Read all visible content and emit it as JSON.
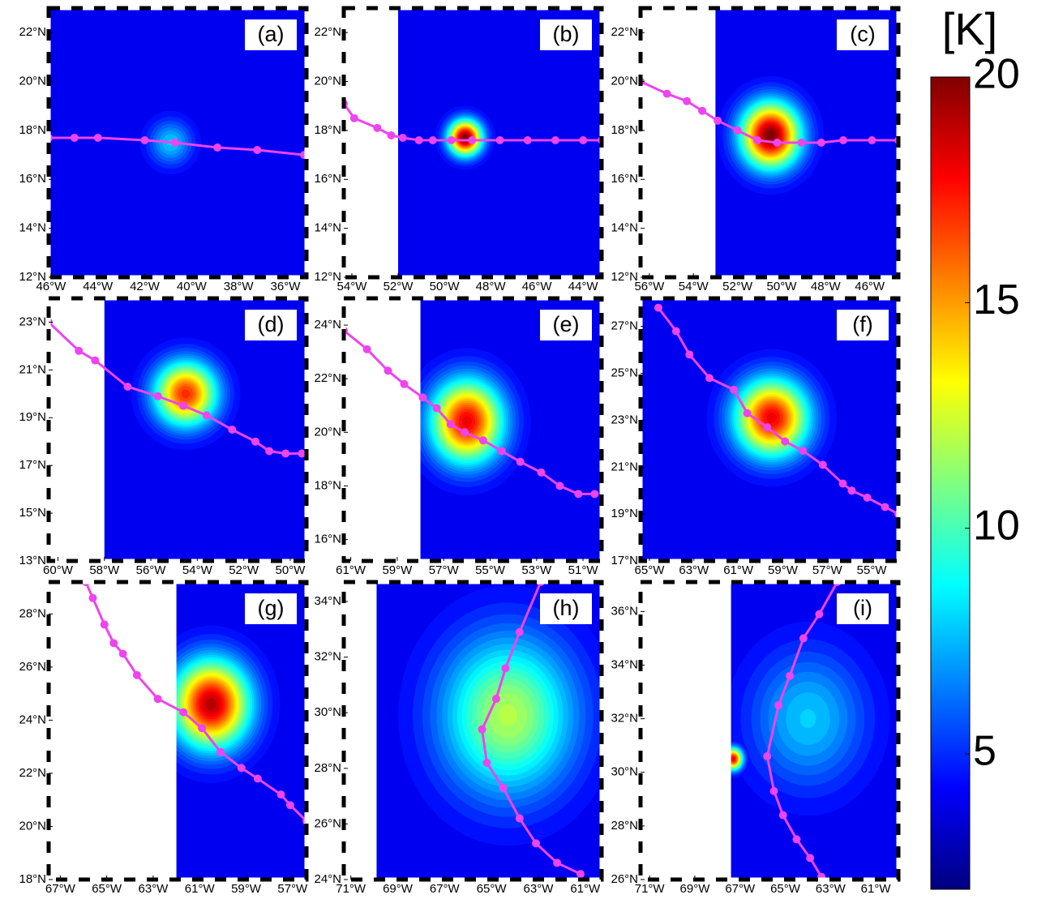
{
  "chart_data": {
    "type": "heatmap",
    "colormap": "jet",
    "track_color": "#ee44ee",
    "colorbar": {
      "label": "[K]",
      "clim": [
        2,
        20
      ],
      "ticks": [
        5,
        10,
        15,
        20
      ]
    },
    "panels": [
      {
        "label": "(a)",
        "xlim": [
          -46.1,
          -35.1
        ],
        "ylim": [
          12,
          23
        ],
        "background": 4,
        "xticks": [
          {
            "value": -46,
            "label": "46°W"
          },
          {
            "value": -44,
            "label": "44°W"
          },
          {
            "value": -42,
            "label": "42°W"
          },
          {
            "value": -40,
            "label": "40°W"
          },
          {
            "value": -38,
            "label": "38°W"
          },
          {
            "value": -36,
            "label": "36°W"
          }
        ],
        "yticks": [
          {
            "value": 12,
            "label": "12°N"
          },
          {
            "value": 14,
            "label": "14°N"
          },
          {
            "value": 16,
            "label": "16°N"
          },
          {
            "value": 18,
            "label": "18°N"
          },
          {
            "value": 20,
            "label": "20°N"
          },
          {
            "value": 22,
            "label": "22°N"
          }
        ],
        "cores": [
          {
            "lon": -40.9,
            "lat": 17.5,
            "peak": 8,
            "radius": 0.9
          }
        ],
        "track": {
          "lon": [
            -46.1,
            -45.0,
            -44.0,
            -42.0,
            -40.7,
            -38.9,
            -37.2,
            -35.2
          ],
          "lat": [
            17.7,
            17.7,
            17.7,
            17.6,
            17.5,
            17.3,
            17.2,
            17.0
          ]
        }
      },
      {
        "label": "(b)",
        "xlim": [
          -54.35,
          -43.2
        ],
        "ylim": [
          12,
          23
        ],
        "background": 4,
        "no_data_west": -52,
        "xticks": [
          {
            "value": -54,
            "label": "54°W"
          },
          {
            "value": -52,
            "label": "52°W"
          },
          {
            "value": -50,
            "label": "50°W"
          },
          {
            "value": -48,
            "label": "48°W"
          },
          {
            "value": -46,
            "label": "46°W"
          },
          {
            "value": -44,
            "label": "44°W"
          }
        ],
        "yticks": [
          {
            "value": 12,
            "label": "12°N"
          },
          {
            "value": 14,
            "label": "14°N"
          },
          {
            "value": 16,
            "label": "16°N"
          },
          {
            "value": 18,
            "label": "18°N"
          },
          {
            "value": 20,
            "label": "20°N"
          },
          {
            "value": 22,
            "label": "22°N"
          }
        ],
        "cores": [
          {
            "lon": -49.1,
            "lat": 17.7,
            "peak": 20,
            "radius": 0.7
          }
        ],
        "track": {
          "lon": [
            -54.35,
            -53.9,
            -52.9,
            -52.3,
            -51.8,
            -51.1,
            -50.5,
            -49.7,
            -48.8,
            -47.6,
            -46.4,
            -45.2,
            -44.0,
            -43.2
          ],
          "lat": [
            19.1,
            18.5,
            18.1,
            17.8,
            17.7,
            17.6,
            17.6,
            17.6,
            17.6,
            17.6,
            17.6,
            17.6,
            17.6,
            17.6
          ]
        }
      },
      {
        "label": "(c)",
        "xlim": [
          -56.4,
          -44.7
        ],
        "ylim": [
          12,
          23
        ],
        "background": 4,
        "no_data_west": -53,
        "xticks": [
          {
            "value": -56,
            "label": "56°W"
          },
          {
            "value": -54,
            "label": "54°W"
          },
          {
            "value": -52,
            "label": "52°W"
          },
          {
            "value": -50,
            "label": "50°W"
          },
          {
            "value": -48,
            "label": "48°W"
          },
          {
            "value": -46,
            "label": "46°W"
          }
        ],
        "yticks": [
          {
            "value": 12,
            "label": "12°N"
          },
          {
            "value": 14,
            "label": "14°N"
          },
          {
            "value": 16,
            "label": "16°N"
          },
          {
            "value": 18,
            "label": "18°N"
          },
          {
            "value": 20,
            "label": "20°N"
          },
          {
            "value": 22,
            "label": "22°N"
          }
        ],
        "cores": [
          {
            "lon": -50.5,
            "lat": 17.8,
            "peak": 20,
            "radius": 1.3
          }
        ],
        "track": {
          "lon": [
            -56.4,
            -55.2,
            -54.3,
            -53.6,
            -52.9,
            -52.0,
            -51.1,
            -50.2,
            -49.1,
            -48.2,
            -47.2,
            -45.9,
            -44.7
          ],
          "lat": [
            20.0,
            19.5,
            19.2,
            18.8,
            18.4,
            18.0,
            17.6,
            17.5,
            17.5,
            17.5,
            17.6,
            17.6,
            17.6
          ]
        }
      },
      {
        "label": "(d)",
        "xlim": [
          -60.4,
          -49.3
        ],
        "ylim": [
          13,
          24
        ],
        "background": 4,
        "no_data_west": -58,
        "xticks": [
          {
            "value": -60,
            "label": "60°W"
          },
          {
            "value": -58,
            "label": "58°W"
          },
          {
            "value": -56,
            "label": "56°W"
          },
          {
            "value": -54,
            "label": "54°W"
          },
          {
            "value": -52,
            "label": "52°W"
          },
          {
            "value": -50,
            "label": "50°W"
          }
        ],
        "yticks": [
          {
            "value": 13,
            "label": "13°N"
          },
          {
            "value": 15,
            "label": "15°N"
          },
          {
            "value": 17,
            "label": "17°N"
          },
          {
            "value": 19,
            "label": "19°N"
          },
          {
            "value": 21,
            "label": "21°N"
          },
          {
            "value": 23,
            "label": "23°N"
          }
        ],
        "cores": [
          {
            "lon": -54.5,
            "lat": 20.0,
            "peak": 17,
            "radius": 1.3
          }
        ],
        "track": {
          "lon": [
            -60.4,
            -59.1,
            -58.4,
            -57.0,
            -55.7,
            -54.6,
            -53.6,
            -52.5,
            -51.5,
            -50.9,
            -50.2,
            -49.5
          ],
          "lat": [
            23.0,
            21.8,
            21.4,
            20.3,
            19.9,
            19.5,
            19.1,
            18.5,
            18.0,
            17.6,
            17.5,
            17.5
          ]
        }
      },
      {
        "label": "(e)",
        "xlim": [
          -61.3,
          -50.2
        ],
        "ylim": [
          15.2,
          25
        ],
        "background": 4,
        "no_data_west": -58,
        "xticks": [
          {
            "value": -61,
            "label": "61°W"
          },
          {
            "value": -59,
            "label": "59°W"
          },
          {
            "value": -57,
            "label": "57°W"
          },
          {
            "value": -55,
            "label": "55°W"
          },
          {
            "value": -53,
            "label": "53°W"
          },
          {
            "value": -51,
            "label": "51°W"
          }
        ],
        "yticks": [
          {
            "value": 16,
            "label": "16°N"
          },
          {
            "value": 18,
            "label": "18°N"
          },
          {
            "value": 20,
            "label": "20°N"
          },
          {
            "value": 22,
            "label": "22°N"
          },
          {
            "value": 24,
            "label": "24°N"
          }
        ],
        "cores": [
          {
            "lon": -56.0,
            "lat": 20.4,
            "peak": 18,
            "radius": 1.5
          }
        ],
        "track": {
          "lon": [
            -61.3,
            -60.3,
            -59.4,
            -58.7,
            -57.9,
            -57.3,
            -56.7,
            -56.1,
            -55.3,
            -54.5,
            -53.7,
            -52.8,
            -52.0,
            -51.2,
            -50.5
          ],
          "lat": [
            23.8,
            23.1,
            22.3,
            21.8,
            21.3,
            20.9,
            20.3,
            20.0,
            19.7,
            19.3,
            18.9,
            18.5,
            18.0,
            17.7,
            17.7
          ]
        }
      },
      {
        "label": "(f)",
        "xlim": [
          -65.4,
          -53.8
        ],
        "ylim": [
          17,
          28.2
        ],
        "background": 4,
        "xticks": [
          {
            "value": -65,
            "label": "65°W"
          },
          {
            "value": -63,
            "label": "63°W"
          },
          {
            "value": -61,
            "label": "61°W"
          },
          {
            "value": -59,
            "label": "59°W"
          },
          {
            "value": -57,
            "label": "57°W"
          },
          {
            "value": -55,
            "label": "55°W"
          }
        ],
        "yticks": [
          {
            "value": 17,
            "label": "17°N"
          },
          {
            "value": 19,
            "label": "19°N"
          },
          {
            "value": 21,
            "label": "21°N"
          },
          {
            "value": 23,
            "label": "23°N"
          },
          {
            "value": 25,
            "label": "25°N"
          },
          {
            "value": 27,
            "label": "27°N"
          }
        ],
        "cores": [
          {
            "lon": -59.5,
            "lat": 23.1,
            "peak": 18,
            "radius": 1.6
          }
        ],
        "track": {
          "lon": [
            -64.6,
            -63.8,
            -63.2,
            -62.3,
            -61.2,
            -60.6,
            -59.7,
            -58.9,
            -58.1,
            -57.2,
            -56.3,
            -55.9,
            -55.2,
            -54.4,
            -53.8
          ],
          "lat": [
            27.8,
            26.8,
            25.8,
            24.8,
            24.3,
            23.3,
            22.7,
            22.1,
            21.7,
            21.1,
            20.3,
            20.0,
            19.7,
            19.3,
            19.0
          ]
        }
      },
      {
        "label": "(g)",
        "xlim": [
          -67.5,
          -56.4
        ],
        "ylim": [
          18,
          29.2
        ],
        "background": 4,
        "no_data_west": -62,
        "xticks": [
          {
            "value": -67,
            "label": "67°W"
          },
          {
            "value": -65,
            "label": "65°W"
          },
          {
            "value": -63,
            "label": "63°W"
          },
          {
            "value": -61,
            "label": "61°W"
          },
          {
            "value": -59,
            "label": "59°W"
          },
          {
            "value": -57,
            "label": "57°W"
          }
        ],
        "yticks": [
          {
            "value": 18,
            "label": "18°N"
          },
          {
            "value": 20,
            "label": "20°N"
          },
          {
            "value": 22,
            "label": "22°N"
          },
          {
            "value": 24,
            "label": "24°N"
          },
          {
            "value": 26,
            "label": "26°N"
          },
          {
            "value": 28,
            "label": "28°N"
          }
        ],
        "cores": [
          {
            "lon": -60.5,
            "lat": 24.6,
            "peak": 19,
            "radius": 1.6
          }
        ],
        "track": {
          "lon": [
            -65.9,
            -65.6,
            -65.1,
            -64.7,
            -64.3,
            -63.7,
            -62.8,
            -61.7,
            -60.9,
            -60.1,
            -59.2,
            -58.5,
            -57.5,
            -57.1,
            -56.4
          ],
          "lat": [
            29.2,
            28.6,
            27.6,
            26.9,
            26.5,
            25.7,
            24.8,
            24.3,
            23.7,
            22.8,
            22.2,
            21.8,
            21.2,
            20.8,
            20.2
          ]
        }
      },
      {
        "label": "(h)",
        "xlim": [
          -71.3,
          -60.3
        ],
        "ylim": [
          24,
          34.7
        ],
        "background": 4,
        "no_data_west": -69.9,
        "xticks": [
          {
            "value": -71,
            "label": "71°W"
          },
          {
            "value": -69,
            "label": "69°W"
          },
          {
            "value": -67,
            "label": "67°W"
          },
          {
            "value": -65,
            "label": "65°W"
          },
          {
            "value": -63,
            "label": "63°W"
          },
          {
            "value": -61,
            "label": "61°W"
          }
        ],
        "yticks": [
          {
            "value": 24,
            "label": "24°N"
          },
          {
            "value": 26,
            "label": "26°N"
          },
          {
            "value": 28,
            "label": "28°N"
          },
          {
            "value": 30,
            "label": "30°N"
          },
          {
            "value": 32,
            "label": "32°N"
          },
          {
            "value": 34,
            "label": "34°N"
          }
        ],
        "cores": [
          {
            "lon": -64.3,
            "lat": 29.9,
            "peak": 12,
            "radius": 2.8
          }
        ],
        "track": {
          "lon": [
            -62.9,
            -63.8,
            -64.4,
            -64.8,
            -65.4,
            -65.2,
            -64.5,
            -63.8,
            -63.1,
            -62.2,
            -61.2
          ],
          "lat": [
            34.7,
            32.9,
            31.6,
            30.5,
            29.4,
            28.2,
            27.3,
            26.2,
            25.3,
            24.6,
            24.2
          ]
        }
      },
      {
        "label": "(i)",
        "xlim": [
          -71.4,
          -60.0
        ],
        "ylim": [
          26,
          37.1
        ],
        "background": 4,
        "no_data_west": -67.4,
        "xticks": [
          {
            "value": -71,
            "label": "71°W"
          },
          {
            "value": -69,
            "label": "69°W"
          },
          {
            "value": -67,
            "label": "67°W"
          },
          {
            "value": -65,
            "label": "65°W"
          },
          {
            "value": -63,
            "label": "63°W"
          },
          {
            "value": -61,
            "label": "61°W"
          }
        ],
        "yticks": [
          {
            "value": 26,
            "label": "26°N"
          },
          {
            "value": 28,
            "label": "28°N"
          },
          {
            "value": 30,
            "label": "30°N"
          },
          {
            "value": 32,
            "label": "32°N"
          },
          {
            "value": 34,
            "label": "34°N"
          },
          {
            "value": 36,
            "label": "36°N"
          }
        ],
        "cores": [
          {
            "lon": -64.0,
            "lat": 32.0,
            "peak": 8,
            "radius": 2.5
          },
          {
            "lon": -67.3,
            "lat": 30.5,
            "peak": 18,
            "radius": 0.4
          }
        ],
        "track": {
          "lon": [
            -62.7,
            -63.5,
            -64.2,
            -64.8,
            -65.3,
            -65.8,
            -65.5,
            -65.1,
            -64.5,
            -63.9,
            -63.4
          ],
          "lat": [
            37.1,
            35.9,
            35.0,
            33.6,
            32.5,
            30.6,
            29.3,
            28.4,
            27.5,
            26.8,
            26.1
          ]
        }
      }
    ]
  }
}
